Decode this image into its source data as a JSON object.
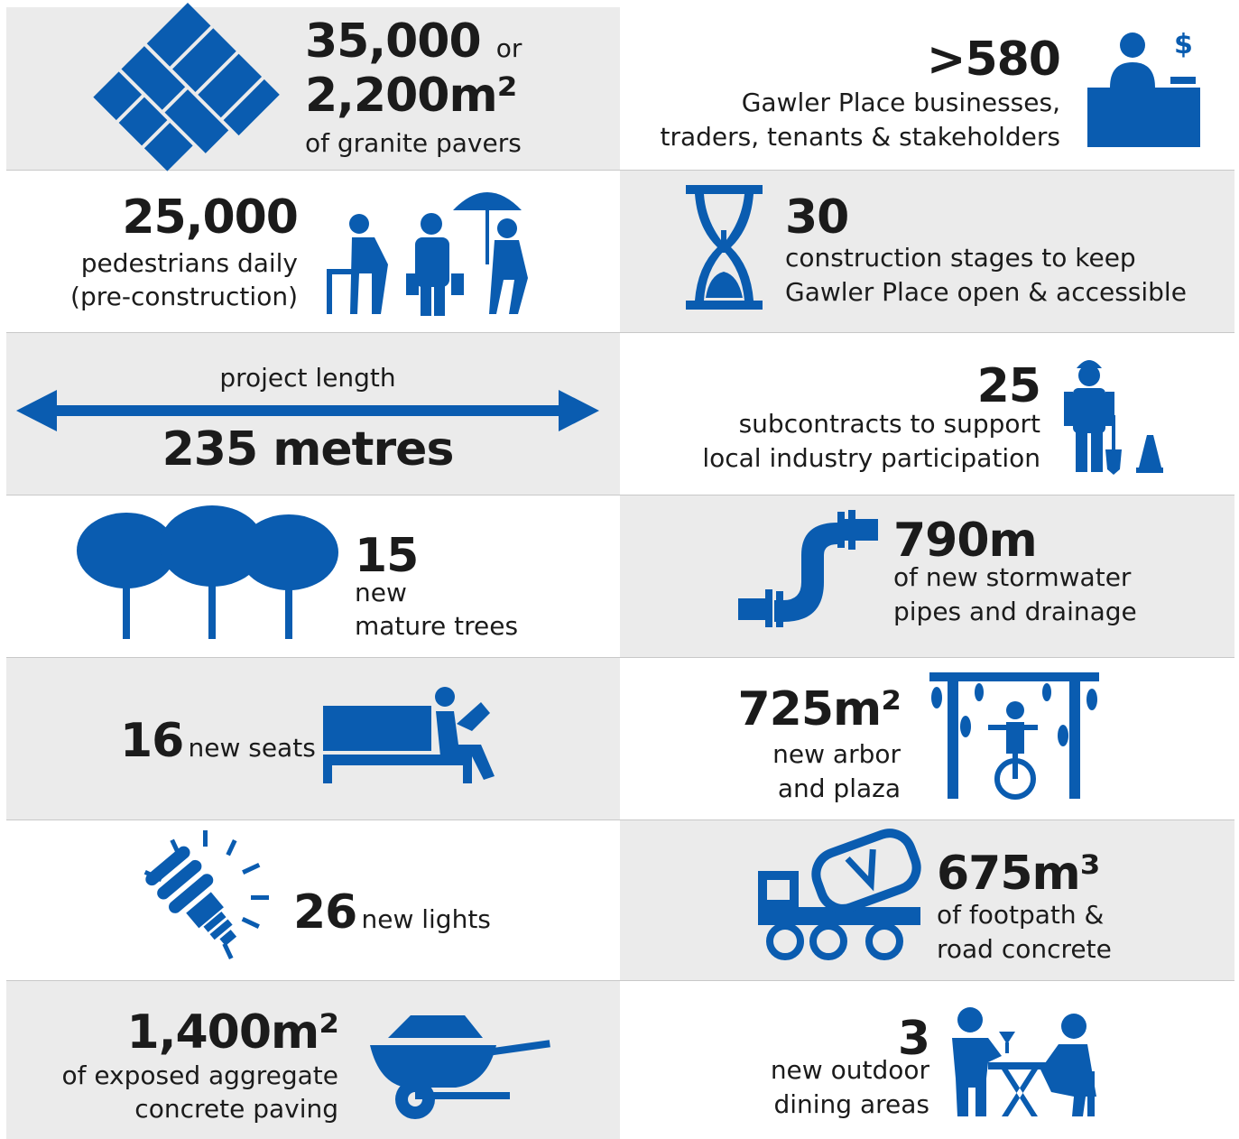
{
  "tiles": [
    {
      "number": "35,000",
      "connector": "or",
      "number2": "2,200m²",
      "label": [
        "of granite pavers"
      ]
    },
    {
      "number": ">580",
      "label": [
        "Gawler Place businesses,",
        "traders, tenants & stakeholders"
      ]
    },
    {
      "number": "25,000",
      "label": [
        "pedestrians daily",
        "(pre-construction)"
      ]
    },
    {
      "number": "30",
      "label": [
        "construction stages to keep",
        "Gawler Place open & accessible"
      ]
    },
    {
      "caption": "project length",
      "number": "235 metres"
    },
    {
      "number": "25",
      "label": [
        "subcontracts to support",
        "local industry participation"
      ]
    },
    {
      "number": "15",
      "label": [
        "new",
        "mature trees"
      ]
    },
    {
      "number": "790m",
      "label": [
        "of new stormwater",
        "pipes and drainage"
      ]
    },
    {
      "number": "16",
      "label": [
        "new seats"
      ]
    },
    {
      "number": "725m²",
      "label": [
        "new arbor",
        "and plaza"
      ]
    },
    {
      "number": "26",
      "label": [
        "new lights"
      ]
    },
    {
      "number": "675m³",
      "label": [
        "of footpath &",
        "road concrete"
      ]
    },
    {
      "number": "1,400m²",
      "label": [
        "of exposed aggregate",
        "concrete paving"
      ]
    },
    {
      "number": "3",
      "label": [
        "new outdoor",
        "dining areas"
      ]
    }
  ]
}
